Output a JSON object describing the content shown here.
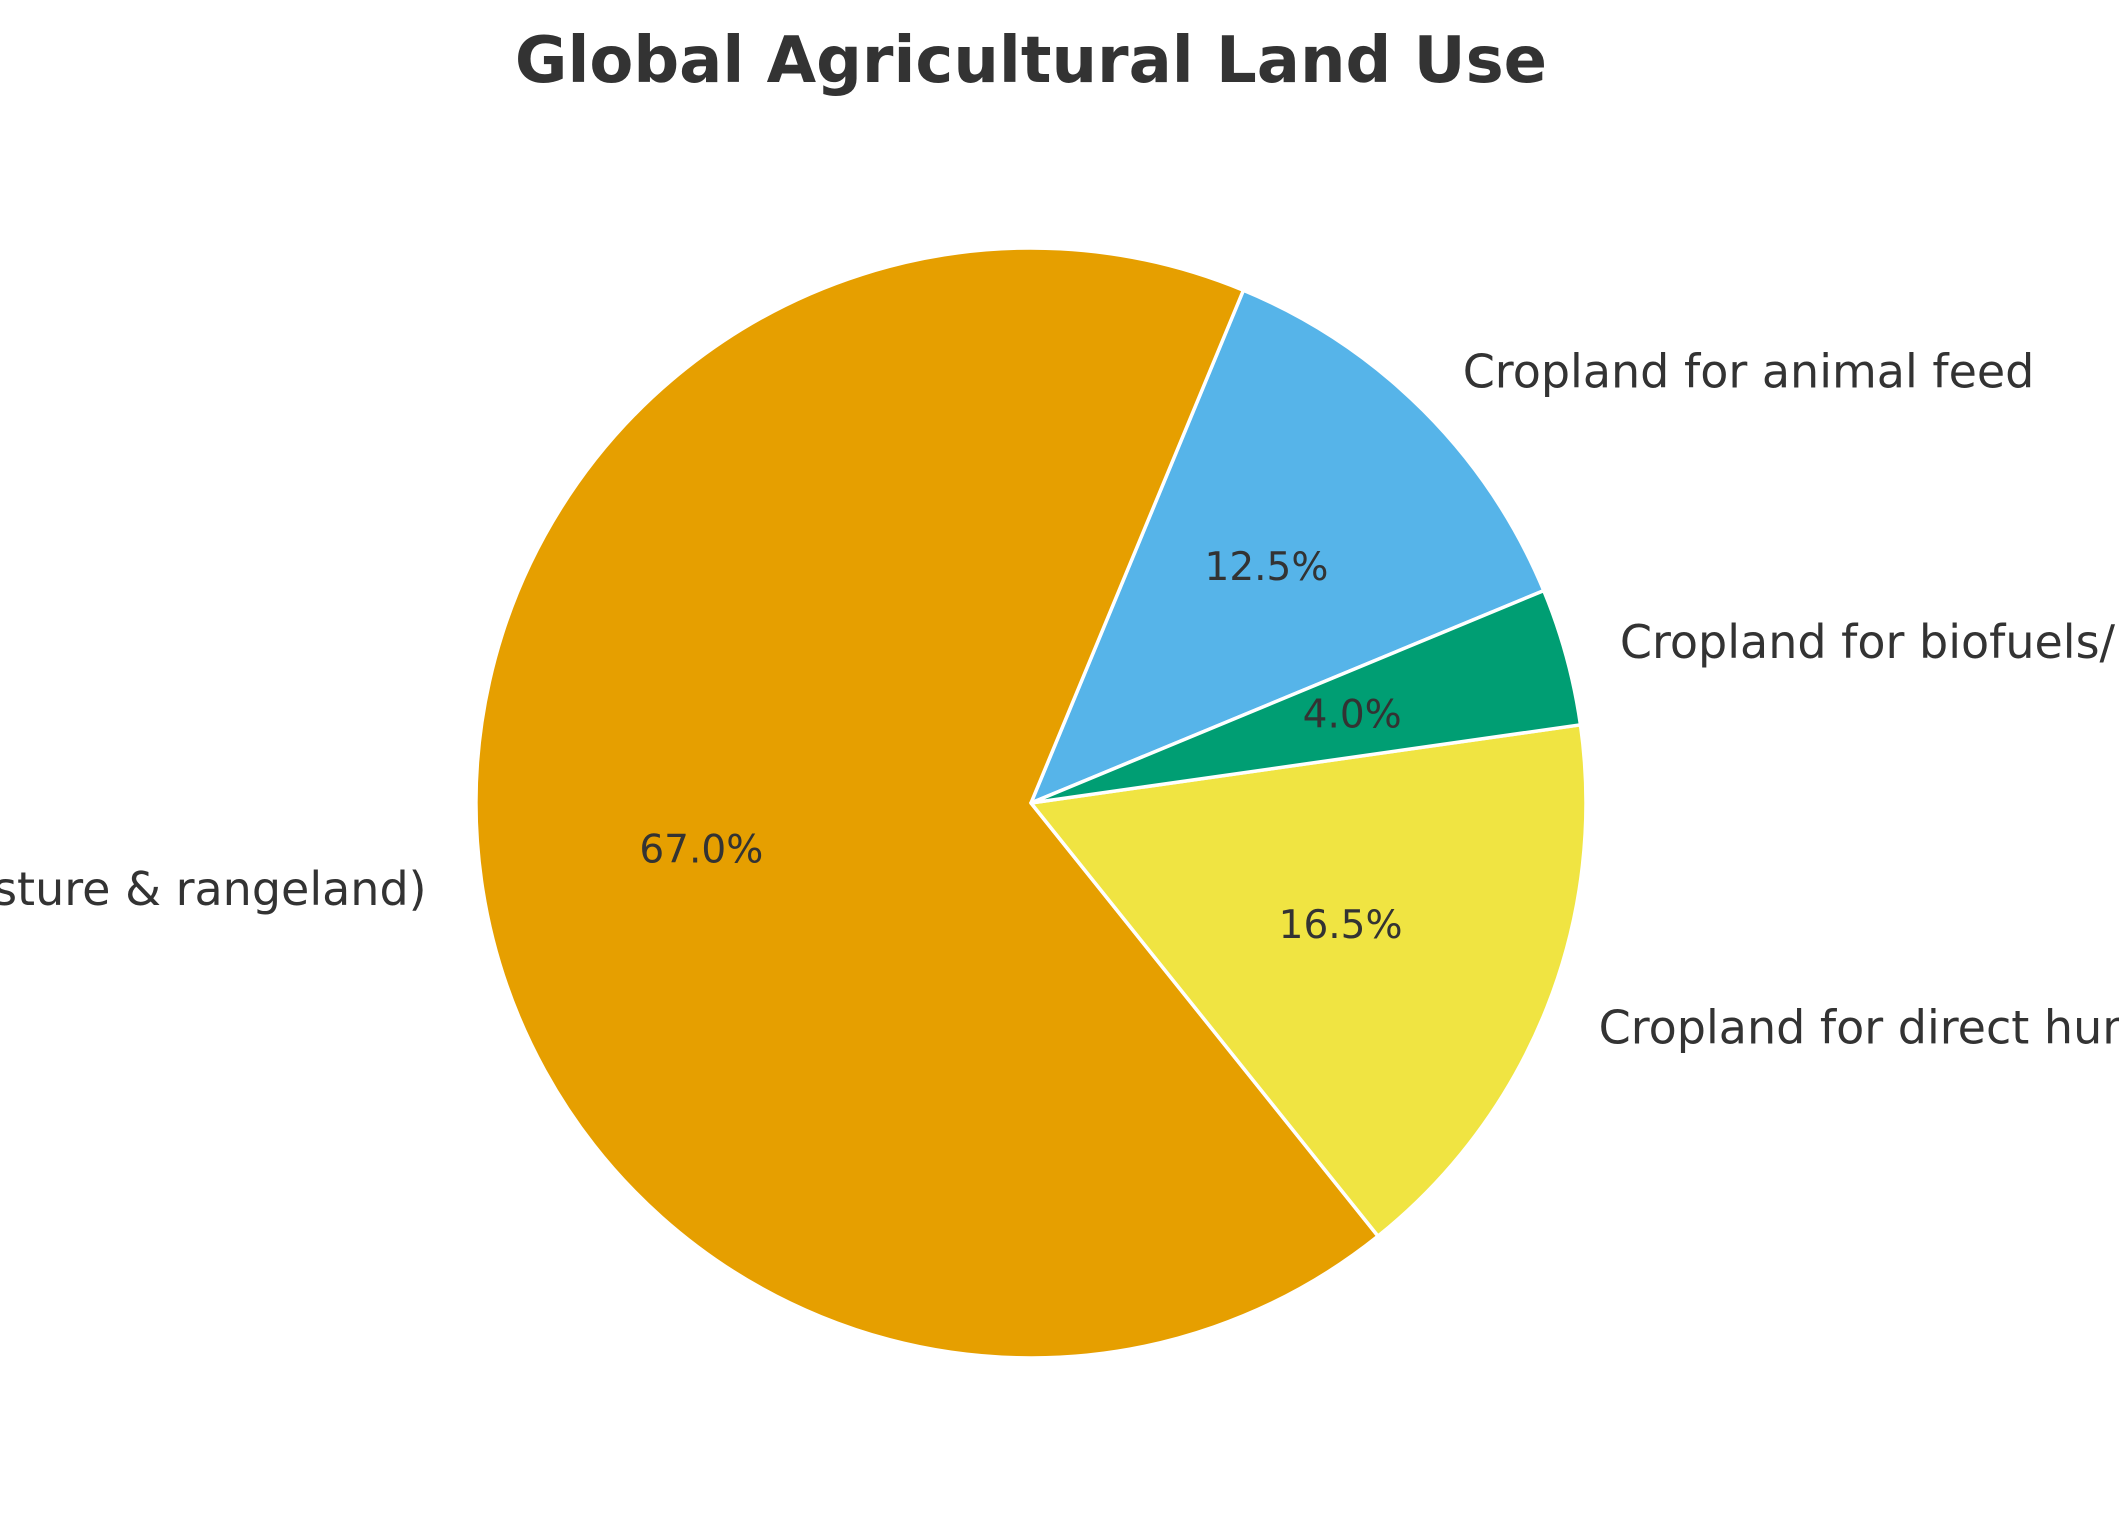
{
  "chart_data": {
    "type": "pie",
    "title": "Global Agricultural Land Use",
    "slices": [
      {
        "label": "Cropland for animal feed",
        "value": 12.5,
        "pct_label": "12.5%",
        "color": "#56B4E9"
      },
      {
        "label": "Grazing (pasture & rangeland)",
        "value": 67.0,
        "pct_label": "67.0%",
        "color": "#E69F00"
      },
      {
        "label": "Cropland for direct human food",
        "value": 16.5,
        "pct_label": "16.5%",
        "color": "#F0E442"
      },
      {
        "label": "Cropland for biofuels/industrial use",
        "value": 4.0,
        "pct_label": "4.0%",
        "color": "#009E73"
      }
    ],
    "wedge_edge_color": "#ffffff",
    "text_color": "#333333"
  }
}
